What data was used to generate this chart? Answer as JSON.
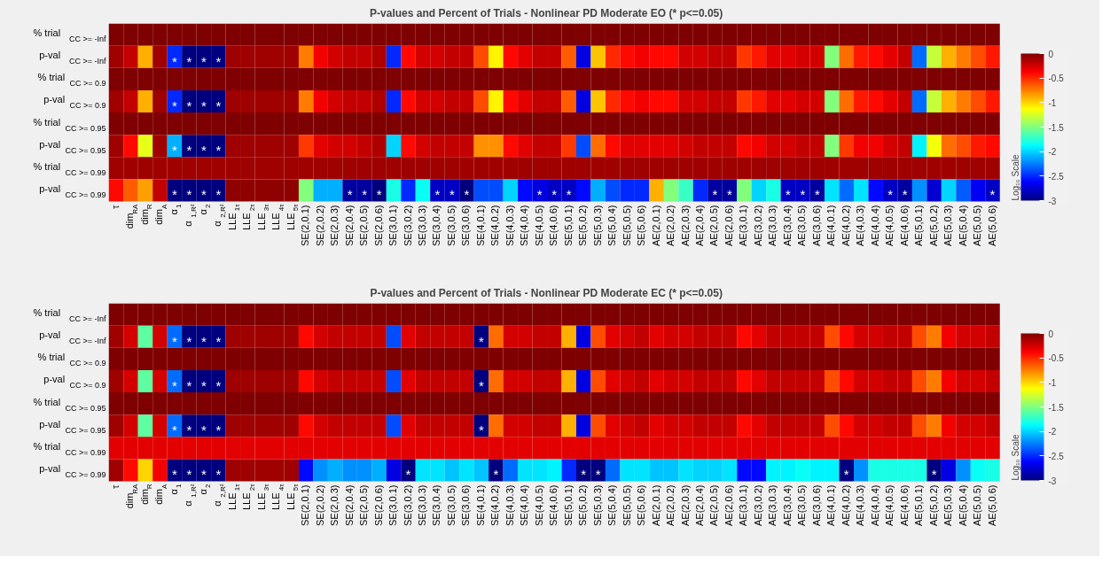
{
  "chart_data": [
    {
      "type": "heatmap",
      "title": "P-values and Percent of Trials - Nonlinear PD Moderate EO (*   p<=0.05)",
      "clabel": "Log₁₀ Scale",
      "clim": [
        -3,
        0
      ],
      "cticks": [
        0,
        -0.5,
        -1,
        -1.5,
        -2,
        -2.5,
        -3
      ],
      "categories": [
        "τ",
        "dim$_{RA}$",
        "dim$_{R}$",
        "dim$_{A}$",
        "α$_{1}$",
        "α$_{1,R²}$",
        "α$_{2}$",
        "α$_{2,R²}$",
        "LLE$_{1τ}$",
        "LLE$_{2τ}$",
        "LLE$_{3τ}$",
        "LLE$_{4τ}$",
        "LLE$_{5τ}$",
        "SE(2,0.1)",
        "SE(2,0.2)",
        "SE(2,0.3)",
        "SE(2,0.4)",
        "SE(2,0.5)",
        "SE(2,0.6)",
        "SE(3,0.1)",
        "SE(3,0.2)",
        "SE(3,0.3)",
        "SE(3,0.4)",
        "SE(3,0.5)",
        "SE(3,0.6)",
        "SE(4,0.1)",
        "SE(4,0.2)",
        "SE(4,0.3)",
        "SE(4,0.4)",
        "SE(4,0.5)",
        "SE(4,0.6)",
        "SE(5,0.1)",
        "SE(5,0.2)",
        "SE(5,0.3)",
        "SE(5,0.4)",
        "SE(5,0.5)",
        "SE(5,0.6)",
        "AE(2,0.1)",
        "AE(2,0.2)",
        "AE(2,0.3)",
        "AE(2,0.4)",
        "AE(2,0.5)",
        "AE(2,0.6)",
        "AE(3,0.1)",
        "AE(3,0.2)",
        "AE(3,0.3)",
        "AE(3,0.4)",
        "AE(3,0.5)",
        "AE(3,0.6)",
        "AE(4,0.1)",
        "AE(4,0.2)",
        "AE(4,0.3)",
        "AE(4,0.4)",
        "AE(4,0.5)",
        "AE(4,0.6)",
        "AE(5,0.1)",
        "AE(5,0.2)",
        "AE(5,0.3)",
        "AE(5,0.4)",
        "AE(5,0.5)",
        "AE(5,0.6)"
      ],
      "y_categories": [
        "% trial$_{CC >= -Inf}$",
        "p-val$_{CC >= -Inf}$",
        "% trial$_{CC >= 0.9}$",
        "p-val$_{CC >= 0.9}$",
        "% trial$_{CC >= 0.95}$",
        "p-val$_{CC >= 0.95}$",
        "% trial$_{CC >= 0.99}$",
        "p-val$_{CC >= 0.99}$"
      ],
      "cells": [
        [
          0,
          0,
          0,
          0,
          0,
          0,
          0,
          0,
          0,
          0,
          0,
          0,
          0,
          0,
          0,
          0,
          0,
          0,
          0,
          0,
          0,
          0,
          0,
          0,
          0,
          0,
          0,
          0,
          0,
          0,
          0,
          0,
          0,
          0,
          0,
          0,
          0,
          0,
          0,
          0,
          0,
          0,
          0,
          0,
          0,
          0,
          0,
          0,
          0,
          0,
          0,
          0,
          0,
          0,
          0,
          0,
          0,
          0,
          0,
          0,
          0
        ],
        [
          -0.1,
          -0.2,
          -0.9,
          -0.1,
          -2.5,
          -3,
          -3,
          -3,
          -0.1,
          -0.1,
          -0.1,
          -0.1,
          -0.1,
          -0.75,
          -0.35,
          -0.25,
          -0.2,
          -0.2,
          -0.15,
          -2.5,
          -0.4,
          -0.25,
          -0.25,
          -0.2,
          -0.2,
          -0.6,
          -1.1,
          -0.4,
          -0.3,
          -0.2,
          -0.2,
          -0.65,
          -2.7,
          -0.95,
          -0.5,
          -0.4,
          -0.35,
          -0.4,
          -0.4,
          -0.25,
          -0.25,
          -0.2,
          -0.2,
          -0.55,
          -0.45,
          -0.3,
          -0.3,
          -0.25,
          -0.25,
          -1.5,
          -0.7,
          -0.45,
          -0.4,
          -0.3,
          -0.2,
          -2.3,
          -1.3,
          -0.9,
          -0.75,
          -0.6,
          -0.45
        ],
        [
          0,
          0,
          0,
          0,
          0,
          0,
          0,
          0,
          0,
          0,
          0,
          0,
          0,
          0,
          0,
          0,
          0,
          0,
          0,
          0,
          0,
          0,
          0,
          0,
          0,
          0,
          0,
          0,
          0,
          0,
          0,
          0,
          0,
          0,
          0,
          0,
          0,
          0,
          0,
          0,
          0,
          0,
          0,
          0,
          0,
          0,
          0,
          0,
          0,
          0,
          0,
          0,
          0,
          0,
          0,
          0,
          0,
          0,
          0,
          0,
          0
        ],
        [
          -0.1,
          -0.2,
          -0.9,
          -0.1,
          -2.5,
          -3,
          -3,
          -3,
          -0.1,
          -0.1,
          -0.1,
          -0.1,
          -0.1,
          -0.75,
          -0.35,
          -0.25,
          -0.2,
          -0.2,
          -0.15,
          -2.5,
          -0.4,
          -0.25,
          -0.25,
          -0.2,
          -0.2,
          -0.6,
          -1.1,
          -0.4,
          -0.3,
          -0.2,
          -0.2,
          -0.65,
          -2.7,
          -0.95,
          -0.5,
          -0.4,
          -0.35,
          -0.4,
          -0.4,
          -0.25,
          -0.25,
          -0.2,
          -0.2,
          -0.55,
          -0.45,
          -0.3,
          -0.3,
          -0.25,
          -0.25,
          -1.5,
          -0.7,
          -0.45,
          -0.4,
          -0.3,
          -0.2,
          -2.3,
          -1.3,
          -0.9,
          -0.75,
          -0.6,
          -0.45
        ],
        [
          0,
          0,
          0,
          0,
          0,
          0,
          0,
          0,
          0,
          0,
          0,
          0,
          0,
          0,
          0,
          0,
          0,
          0,
          0,
          0,
          0,
          0,
          0,
          0,
          0,
          0,
          0,
          0,
          0,
          0,
          0,
          0,
          0,
          0,
          0,
          0,
          0,
          0,
          0,
          0,
          0,
          0,
          0,
          0,
          0,
          0,
          0,
          0,
          0,
          0,
          0,
          0,
          0,
          0,
          0,
          0,
          0,
          0,
          0,
          0,
          0
        ],
        [
          -0.1,
          -0.4,
          -1.2,
          -0.1,
          -2.1,
          -3,
          -3,
          -3,
          -0.1,
          -0.1,
          -0.1,
          -0.1,
          -0.1,
          -0.55,
          -0.3,
          -0.25,
          -0.25,
          -0.2,
          -0.15,
          -2.0,
          -0.4,
          -0.25,
          -0.2,
          -0.2,
          -0.2,
          -0.8,
          -0.8,
          -0.4,
          -0.3,
          -0.2,
          -0.2,
          -0.55,
          -2.4,
          -0.7,
          -0.4,
          -0.3,
          -0.3,
          -0.3,
          -0.3,
          -0.25,
          -0.2,
          -0.2,
          -0.2,
          -0.4,
          -0.35,
          -0.25,
          -0.25,
          -0.2,
          -0.2,
          -1.5,
          -0.55,
          -0.35,
          -0.35,
          -0.25,
          -0.2,
          -1.9,
          -1.15,
          -0.7,
          -0.6,
          -0.45,
          -0.4
        ],
        [
          -0.1,
          -0.1,
          -0.1,
          -0.1,
          -0.1,
          -0.1,
          -0.1,
          -0.1,
          -0.1,
          -0.1,
          -0.1,
          -0.1,
          -0.1,
          -0.1,
          -0.1,
          -0.1,
          -0.1,
          -0.1,
          -0.1,
          -0.1,
          -0.1,
          -0.1,
          -0.1,
          -0.1,
          -0.1,
          -0.1,
          -0.1,
          -0.1,
          -0.1,
          -0.1,
          -0.1,
          -0.1,
          -0.1,
          -0.1,
          -0.1,
          -0.1,
          -0.1,
          -0.1,
          -0.1,
          -0.1,
          -0.1,
          -0.1,
          -0.1,
          -0.1,
          -0.1,
          -0.1,
          -0.1,
          -0.1,
          -0.1,
          -0.1,
          -0.1,
          -0.1,
          -0.1,
          -0.1,
          -0.1,
          -0.1,
          -0.1,
          -0.1,
          -0.1,
          -0.1,
          -0.1
        ],
        [
          -0.4,
          -0.65,
          -0.85,
          -0.2,
          -3,
          -3,
          -3,
          -3,
          -0.05,
          -0.05,
          -0.05,
          -0.05,
          -0.05,
          -1.5,
          -2.1,
          -2.1,
          -2.9,
          -2.9,
          -3,
          -1.8,
          -2.5,
          -1.85,
          -2.8,
          -2.8,
          -3,
          -2.4,
          -2.4,
          -2.0,
          -2.6,
          -2.7,
          -2.8,
          -2.8,
          -2.6,
          -2.1,
          -2.4,
          -2.5,
          -2.5,
          -0.9,
          -1.5,
          -1.7,
          -2.5,
          -2.9,
          -2.9,
          -1.5,
          -2.0,
          -1.8,
          -2.8,
          -2.8,
          -2.9,
          -1.95,
          -2.3,
          -1.95,
          -2.6,
          -2.8,
          -2.9,
          -2.2,
          -2.75,
          -2.0,
          -2.35,
          -2.65,
          -2.8
        ]
      ],
      "cell_labels": [
        [
          null,
          null,
          null,
          null,
          null,
          null,
          null,
          null,
          null,
          null,
          null,
          null,
          null,
          null,
          null,
          null,
          null,
          null,
          null,
          null,
          null,
          null,
          null,
          null,
          null,
          null,
          null,
          null,
          null,
          null,
          null,
          null,
          null,
          null,
          null,
          null,
          null,
          null,
          null,
          null,
          null,
          null,
          null,
          null,
          null,
          null,
          null,
          null,
          null,
          null,
          null,
          null,
          null,
          null,
          null,
          null,
          null,
          null,
          null,
          null,
          null
        ],
        [
          null,
          null,
          null,
          null,
          "*",
          "*",
          "*",
          "*",
          null,
          null,
          null,
          null,
          null,
          null,
          null,
          null,
          null,
          null,
          null,
          null,
          null,
          null,
          null,
          null,
          null,
          null,
          null,
          null,
          null,
          null,
          null,
          null,
          null,
          null,
          null,
          null,
          null,
          null,
          null,
          null,
          null,
          null,
          null,
          null,
          null,
          null,
          null,
          null,
          null,
          null,
          null,
          null,
          null,
          null,
          null,
          null,
          null,
          null,
          null,
          null,
          null
        ],
        [
          null,
          null,
          null,
          null,
          null,
          null,
          null,
          null,
          null,
          null,
          null,
          null,
          null,
          null,
          null,
          null,
          null,
          null,
          null,
          null,
          null,
          null,
          null,
          null,
          null,
          null,
          null,
          null,
          null,
          null,
          null,
          null,
          null,
          null,
          null,
          null,
          null,
          null,
          null,
          null,
          null,
          null,
          null,
          null,
          null,
          null,
          null,
          null,
          null,
          null,
          null,
          null,
          null,
          null,
          null,
          null,
          null,
          null,
          null,
          null,
          null
        ],
        [
          null,
          null,
          null,
          null,
          "*",
          "*",
          "*",
          "*",
          null,
          null,
          null,
          null,
          null,
          null,
          null,
          null,
          null,
          null,
          null,
          null,
          null,
          null,
          null,
          null,
          null,
          null,
          null,
          null,
          null,
          null,
          null,
          null,
          null,
          null,
          null,
          null,
          null,
          null,
          null,
          null,
          null,
          null,
          null,
          null,
          null,
          null,
          null,
          null,
          null,
          null,
          null,
          null,
          null,
          null,
          null,
          null,
          null,
          null,
          null,
          null,
          null
        ],
        [
          null,
          null,
          null,
          null,
          null,
          null,
          null,
          null,
          null,
          null,
          null,
          null,
          null,
          null,
          null,
          null,
          null,
          null,
          null,
          null,
          null,
          null,
          null,
          null,
          null,
          null,
          null,
          null,
          null,
          null,
          null,
          null,
          null,
          null,
          null,
          null,
          null,
          null,
          null,
          null,
          null,
          null,
          null,
          null,
          null,
          null,
          null,
          null,
          null,
          null,
          null,
          null,
          null,
          null,
          null,
          null,
          null,
          null,
          null,
          null,
          null
        ],
        [
          null,
          null,
          null,
          null,
          "*",
          "*",
          "*",
          "*",
          null,
          null,
          null,
          null,
          null,
          null,
          null,
          null,
          null,
          null,
          null,
          null,
          null,
          null,
          null,
          null,
          null,
          null,
          null,
          null,
          null,
          null,
          null,
          null,
          null,
          null,
          null,
          null,
          null,
          null,
          null,
          null,
          null,
          null,
          null,
          null,
          null,
          null,
          null,
          null,
          null,
          null,
          null,
          null,
          null,
          null,
          null,
          null,
          null,
          null,
          null,
          null,
          null
        ],
        [
          null,
          null,
          null,
          null,
          null,
          null,
          null,
          null,
          null,
          null,
          null,
          null,
          null,
          null,
          null,
          null,
          null,
          null,
          null,
          null,
          null,
          null,
          null,
          null,
          null,
          null,
          null,
          null,
          null,
          null,
          null,
          null,
          null,
          null,
          null,
          null,
          null,
          null,
          null,
          null,
          null,
          null,
          null,
          null,
          null,
          null,
          null,
          null,
          null,
          null,
          null,
          null,
          null,
          null,
          null,
          null,
          null,
          null,
          null,
          null,
          null
        ],
        [
          null,
          null,
          null,
          null,
          "*",
          "*",
          "*",
          "*",
          null,
          null,
          null,
          null,
          null,
          null,
          null,
          null,
          "*",
          "*",
          "*",
          null,
          null,
          null,
          "*",
          "*",
          "*",
          null,
          null,
          null,
          null,
          "*",
          "*",
          "*",
          null,
          null,
          null,
          null,
          null,
          null,
          null,
          null,
          null,
          "*",
          "*",
          null,
          null,
          null,
          "*",
          "*",
          "*",
          null,
          null,
          null,
          null,
          "*",
          "*",
          null,
          null,
          null,
          null,
          null,
          "*"
        ]
      ]
    },
    {
      "type": "heatmap",
      "title": "P-values and Percent of Trials - Nonlinear PD Moderate EC (*   p<=0.05)",
      "clabel": "Log₁₀ Scale",
      "clim": [
        -3,
        0
      ],
      "cticks": [
        0,
        -0.5,
        -1,
        -1.5,
        -2,
        -2.5,
        -3
      ],
      "categories": [
        "τ",
        "dim$_{RA}$",
        "dim$_{R}$",
        "dim$_{A}$",
        "α$_{1}$",
        "α$_{1,R²}$",
        "α$_{2}$",
        "α$_{2,R²}$",
        "LLE$_{1τ}$",
        "LLE$_{2τ}$",
        "LLE$_{3τ}$",
        "LLE$_{4τ}$",
        "LLE$_{5τ}$",
        "SE(2,0.1)",
        "SE(2,0.2)",
        "SE(2,0.3)",
        "SE(2,0.4)",
        "SE(2,0.5)",
        "SE(2,0.6)",
        "SE(3,0.1)",
        "SE(3,0.2)",
        "SE(3,0.3)",
        "SE(3,0.4)",
        "SE(3,0.5)",
        "SE(3,0.6)",
        "SE(4,0.1)",
        "SE(4,0.2)",
        "SE(4,0.3)",
        "SE(4,0.4)",
        "SE(4,0.5)",
        "SE(4,0.6)",
        "SE(5,0.1)",
        "SE(5,0.2)",
        "SE(5,0.3)",
        "SE(5,0.4)",
        "SE(5,0.5)",
        "SE(5,0.6)",
        "AE(2,0.1)",
        "AE(2,0.2)",
        "AE(2,0.3)",
        "AE(2,0.4)",
        "AE(2,0.5)",
        "AE(2,0.6)",
        "AE(3,0.1)",
        "AE(3,0.2)",
        "AE(3,0.3)",
        "AE(3,0.4)",
        "AE(3,0.5)",
        "AE(3,0.6)",
        "AE(4,0.1)",
        "AE(4,0.2)",
        "AE(4,0.3)",
        "AE(4,0.4)",
        "AE(4,0.5)",
        "AE(4,0.6)",
        "AE(5,0.1)",
        "AE(5,0.2)",
        "AE(5,0.3)",
        "AE(5,0.4)",
        "AE(5,0.5)",
        "AE(5,0.6)"
      ],
      "y_categories": [
        "% trial$_{CC >= -Inf}$",
        "p-val$_{CC >= -Inf}$",
        "% trial$_{CC >= 0.9}$",
        "p-val$_{CC >= 0.9}$",
        "% trial$_{CC >= 0.95}$",
        "p-val$_{CC >= 0.95}$",
        "% trial$_{CC >= 0.99}$",
        "p-val$_{CC >= 0.99}$"
      ],
      "cells": [
        [
          0,
          0,
          0,
          0,
          0,
          0,
          0,
          0,
          0,
          0,
          0,
          0,
          0,
          0,
          0,
          0,
          0,
          0,
          0,
          0,
          0,
          0,
          0,
          0,
          0,
          0,
          0,
          0,
          0,
          0,
          0,
          0,
          0,
          0,
          0,
          0,
          0,
          0,
          0,
          0,
          0,
          0,
          0,
          0,
          0,
          0,
          0,
          0,
          0,
          0,
          0,
          0,
          0,
          0,
          0,
          0,
          0,
          0,
          0,
          0,
          0
        ],
        [
          -0.1,
          -0.25,
          -1.6,
          -0.25,
          -2.3,
          -3,
          -3,
          -3,
          -0.1,
          -0.1,
          -0.1,
          -0.1,
          -0.1,
          -0.4,
          -0.25,
          -0.2,
          -0.2,
          -0.2,
          -0.2,
          -2.4,
          -0.3,
          -0.2,
          -0.2,
          -0.2,
          -0.2,
          -3,
          -0.7,
          -0.25,
          -0.25,
          -0.2,
          -0.2,
          -0.9,
          -2.7,
          -0.6,
          -0.3,
          -0.25,
          -0.2,
          -0.3,
          -0.25,
          -0.25,
          -0.2,
          -0.2,
          -0.2,
          -0.4,
          -0.3,
          -0.2,
          -0.2,
          -0.2,
          -0.2,
          -0.6,
          -0.4,
          -0.25,
          -0.25,
          -0.2,
          -0.2,
          -0.6,
          -0.75,
          -0.35,
          -0.25,
          -0.25,
          -0.2
        ],
        [
          0,
          0,
          0,
          0,
          0,
          0,
          0,
          0,
          0,
          0,
          0,
          0,
          0,
          0,
          0,
          0,
          0,
          0,
          0,
          0,
          0,
          0,
          0,
          0,
          0,
          0,
          0,
          0,
          0,
          0,
          0,
          0,
          0,
          0,
          0,
          0,
          0,
          0,
          0,
          0,
          0,
          0,
          0,
          0,
          0,
          0,
          0,
          0,
          0,
          0,
          0,
          0,
          0,
          0,
          0,
          0,
          0,
          0,
          0,
          0,
          0
        ],
        [
          -0.1,
          -0.25,
          -1.6,
          -0.25,
          -2.3,
          -3,
          -3,
          -3,
          -0.1,
          -0.1,
          -0.1,
          -0.1,
          -0.1,
          -0.4,
          -0.25,
          -0.2,
          -0.2,
          -0.2,
          -0.2,
          -2.4,
          -0.3,
          -0.2,
          -0.2,
          -0.2,
          -0.2,
          -3,
          -0.7,
          -0.25,
          -0.25,
          -0.2,
          -0.2,
          -0.9,
          -2.7,
          -0.6,
          -0.3,
          -0.25,
          -0.2,
          -0.3,
          -0.25,
          -0.25,
          -0.2,
          -0.2,
          -0.2,
          -0.4,
          -0.3,
          -0.2,
          -0.2,
          -0.2,
          -0.2,
          -0.6,
          -0.4,
          -0.25,
          -0.25,
          -0.2,
          -0.2,
          -0.6,
          -0.75,
          -0.35,
          -0.25,
          -0.25,
          -0.2
        ],
        [
          0,
          0,
          0,
          0,
          0,
          0,
          0,
          0,
          0,
          0,
          0,
          0,
          0,
          0,
          0,
          0,
          0,
          0,
          0,
          0,
          0,
          0,
          0,
          0,
          0,
          0,
          0,
          0,
          0,
          0,
          0,
          0,
          0,
          0,
          0,
          0,
          0,
          0,
          0,
          0,
          0,
          0,
          0,
          0,
          0,
          0,
          0,
          0,
          0,
          0,
          0,
          0,
          0,
          0,
          0,
          0,
          0,
          0,
          0,
          0,
          0
        ],
        [
          -0.1,
          -0.25,
          -1.6,
          -0.25,
          -2.3,
          -3,
          -3,
          -3,
          -0.1,
          -0.1,
          -0.1,
          -0.1,
          -0.1,
          -0.4,
          -0.25,
          -0.2,
          -0.2,
          -0.2,
          -0.2,
          -2.4,
          -0.3,
          -0.2,
          -0.2,
          -0.2,
          -0.2,
          -3,
          -0.7,
          -0.25,
          -0.25,
          -0.2,
          -0.2,
          -0.9,
          -2.7,
          -0.6,
          -0.3,
          -0.25,
          -0.2,
          -0.3,
          -0.25,
          -0.25,
          -0.2,
          -0.2,
          -0.2,
          -0.4,
          -0.3,
          -0.2,
          -0.2,
          -0.2,
          -0.2,
          -0.6,
          -0.4,
          -0.25,
          -0.25,
          -0.2,
          -0.2,
          -0.6,
          -0.75,
          -0.35,
          -0.25,
          -0.25,
          -0.2
        ],
        [
          -0.3,
          -0.3,
          -0.3,
          -0.3,
          -0.3,
          -0.3,
          -0.3,
          -0.3,
          -0.3,
          -0.3,
          -0.3,
          -0.3,
          -0.3,
          -0.3,
          -0.3,
          -0.3,
          -0.3,
          -0.3,
          -0.3,
          -0.3,
          -0.3,
          -0.3,
          -0.3,
          -0.3,
          -0.3,
          -0.3,
          -0.3,
          -0.3,
          -0.3,
          -0.3,
          -0.3,
          -0.3,
          -0.3,
          -0.3,
          -0.3,
          -0.3,
          -0.3,
          -0.3,
          -0.3,
          -0.3,
          -0.3,
          -0.3,
          -0.3,
          -0.3,
          -0.3,
          -0.3,
          -0.3,
          -0.3,
          -0.3,
          -0.3,
          -0.3,
          -0.3,
          -0.3,
          -0.3,
          -0.3,
          -0.3,
          -0.3,
          -0.3,
          -0.3,
          -0.3,
          -0.3
        ],
        [
          -0.1,
          -0.4,
          -1.0,
          -0.35,
          -3,
          -3,
          -3,
          -3,
          -0.1,
          -0.1,
          -0.1,
          -0.1,
          -0.1,
          -2.6,
          -2.2,
          -2.1,
          -2.2,
          -2.2,
          -2.1,
          -2.7,
          -3,
          -1.95,
          -1.95,
          -2.05,
          -1.95,
          -2.05,
          -3,
          -2.3,
          -1.95,
          -1.95,
          -1.9,
          -2.5,
          -3,
          -3,
          -2.3,
          -1.95,
          -1.95,
          -2.05,
          -2.05,
          -1.95,
          -2.0,
          -2.0,
          -1.95,
          -2.6,
          -2.6,
          -1.9,
          -1.9,
          -1.85,
          -1.9,
          -1.9,
          -3,
          -2.2,
          -1.8,
          -1.8,
          -1.8,
          -1.8,
          -3,
          -2.7,
          -2.2,
          -1.85,
          -1.8
        ]
      ],
      "cell_labels": [
        [
          null,
          null,
          null,
          null,
          null,
          null,
          null,
          null,
          null,
          null,
          null,
          null,
          null,
          null,
          null,
          null,
          null,
          null,
          null,
          null,
          null,
          null,
          null,
          null,
          null,
          null,
          null,
          null,
          null,
          null,
          null,
          null,
          null,
          null,
          null,
          null,
          null,
          null,
          null,
          null,
          null,
          null,
          null,
          null,
          null,
          null,
          null,
          null,
          null,
          null,
          null,
          null,
          null,
          null,
          null,
          null,
          null,
          null,
          null,
          null,
          null
        ],
        [
          null,
          null,
          null,
          null,
          "*",
          "*",
          "*",
          "*",
          null,
          null,
          null,
          null,
          null,
          null,
          null,
          null,
          null,
          null,
          null,
          null,
          null,
          null,
          null,
          null,
          null,
          "*",
          null,
          null,
          null,
          null,
          null,
          null,
          null,
          null,
          null,
          null,
          null,
          null,
          null,
          null,
          null,
          null,
          null,
          null,
          null,
          null,
          null,
          null,
          null,
          null,
          null,
          null,
          null,
          null,
          null,
          null,
          null,
          null,
          null,
          null,
          null
        ],
        [
          null,
          null,
          null,
          null,
          null,
          null,
          null,
          null,
          null,
          null,
          null,
          null,
          null,
          null,
          null,
          null,
          null,
          null,
          null,
          null,
          null,
          null,
          null,
          null,
          null,
          null,
          null,
          null,
          null,
          null,
          null,
          null,
          null,
          null,
          null,
          null,
          null,
          null,
          null,
          null,
          null,
          null,
          null,
          null,
          null,
          null,
          null,
          null,
          null,
          null,
          null,
          null,
          null,
          null,
          null,
          null,
          null,
          null,
          null,
          null,
          null
        ],
        [
          null,
          null,
          null,
          null,
          "*",
          "*",
          "*",
          "*",
          null,
          null,
          null,
          null,
          null,
          null,
          null,
          null,
          null,
          null,
          null,
          null,
          null,
          null,
          null,
          null,
          null,
          "*",
          null,
          null,
          null,
          null,
          null,
          null,
          null,
          null,
          null,
          null,
          null,
          null,
          null,
          null,
          null,
          null,
          null,
          null,
          null,
          null,
          null,
          null,
          null,
          null,
          null,
          null,
          null,
          null,
          null,
          null,
          null,
          null,
          null,
          null,
          null
        ],
        [
          null,
          null,
          null,
          null,
          null,
          null,
          null,
          null,
          null,
          null,
          null,
          null,
          null,
          null,
          null,
          null,
          null,
          null,
          null,
          null,
          null,
          null,
          null,
          null,
          null,
          null,
          null,
          null,
          null,
          null,
          null,
          null,
          null,
          null,
          null,
          null,
          null,
          null,
          null,
          null,
          null,
          null,
          null,
          null,
          null,
          null,
          null,
          null,
          null,
          null,
          null,
          null,
          null,
          null,
          null,
          null,
          null,
          null,
          null,
          null,
          null
        ],
        [
          null,
          null,
          null,
          null,
          "*",
          "*",
          "*",
          "*",
          null,
          null,
          null,
          null,
          null,
          null,
          null,
          null,
          null,
          null,
          null,
          null,
          null,
          null,
          null,
          null,
          null,
          "*",
          null,
          null,
          null,
          null,
          null,
          null,
          null,
          null,
          null,
          null,
          null,
          null,
          null,
          null,
          null,
          null,
          null,
          null,
          null,
          null,
          null,
          null,
          null,
          null,
          null,
          null,
          null,
          null,
          null,
          null,
          null,
          null,
          null,
          null,
          null
        ],
        [
          null,
          null,
          null,
          null,
          null,
          null,
          null,
          null,
          null,
          null,
          null,
          null,
          null,
          null,
          null,
          null,
          null,
          null,
          null,
          null,
          null,
          null,
          null,
          null,
          null,
          null,
          null,
          null,
          null,
          null,
          null,
          null,
          null,
          null,
          null,
          null,
          null,
          null,
          null,
          null,
          null,
          null,
          null,
          null,
          null,
          null,
          null,
          null,
          null,
          null,
          null,
          null,
          null,
          null,
          null,
          null,
          null,
          null,
          null,
          null,
          null
        ],
        [
          null,
          null,
          null,
          null,
          "*",
          "*",
          "*",
          "*",
          null,
          null,
          null,
          null,
          null,
          null,
          null,
          null,
          null,
          null,
          null,
          null,
          "*",
          null,
          null,
          null,
          null,
          null,
          "*",
          null,
          null,
          null,
          null,
          null,
          "*",
          "*",
          null,
          null,
          null,
          null,
          null,
          null,
          null,
          null,
          null,
          null,
          null,
          null,
          null,
          null,
          null,
          null,
          "*",
          null,
          null,
          null,
          null,
          null,
          "*",
          null,
          null,
          null,
          null
        ]
      ]
    }
  ]
}
